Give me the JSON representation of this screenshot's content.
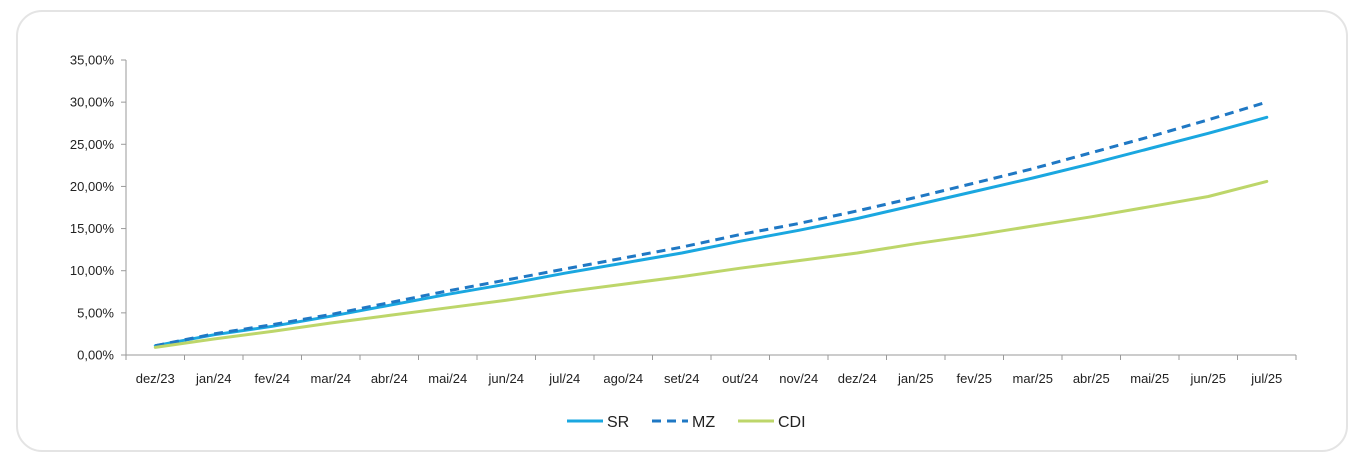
{
  "chart_data": {
    "type": "line",
    "categories": [
      "dez/23",
      "jan/24",
      "fev/24",
      "mar/24",
      "abr/24",
      "mai/24",
      "jun/24",
      "jul/24",
      "ago/24",
      "set/24",
      "out/24",
      "nov/24",
      "dez/24",
      "jan/25",
      "fev/25",
      "mar/25",
      "abr/25",
      "mai/25",
      "jun/25",
      "jul/25"
    ],
    "y_ticks": [
      "0,00%",
      "5,00%",
      "10,00%",
      "15,00%",
      "20,00%",
      "25,00%",
      "30,00%",
      "35,00%"
    ],
    "ylim": [
      0,
      35
    ],
    "legend_position": "bottom",
    "grid": false,
    "series": [
      {
        "name": "SR",
        "color": "#1aa7e0",
        "dash": "solid",
        "values": [
          1.1,
          2.4,
          3.4,
          4.6,
          5.9,
          7.2,
          8.4,
          9.7,
          10.9,
          12.1,
          13.5,
          14.8,
          16.2,
          17.8,
          19.4,
          21.0,
          22.7,
          24.5,
          26.3,
          28.2
        ]
      },
      {
        "name": "MZ",
        "color": "#1f78c4",
        "dash": "dashed",
        "values": [
          1.1,
          2.5,
          3.6,
          4.8,
          6.2,
          7.6,
          8.9,
          10.2,
          11.5,
          12.8,
          14.3,
          15.6,
          17.1,
          18.7,
          20.4,
          22.1,
          24.0,
          25.9,
          27.9,
          30.0
        ]
      },
      {
        "name": "CDI",
        "color": "#bdd66a",
        "dash": "solid",
        "values": [
          0.9,
          1.9,
          2.8,
          3.8,
          4.7,
          5.6,
          6.5,
          7.5,
          8.4,
          9.3,
          10.3,
          11.2,
          12.1,
          13.2,
          14.2,
          15.3,
          16.4,
          17.6,
          18.8,
          20.6
        ]
      }
    ]
  }
}
